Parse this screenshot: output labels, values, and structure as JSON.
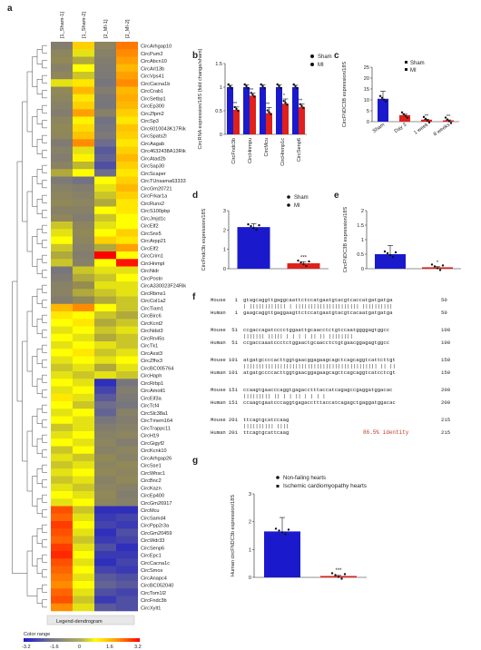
{
  "panels": {
    "a": "a",
    "b": "b",
    "c": "c",
    "d": "d",
    "e": "e",
    "f": "f",
    "g": "g"
  },
  "chart_data": [
    {
      "panel": "a",
      "type": "heatmap",
      "columns": [
        "[1_Sham-1]",
        "[1_Sham-2]",
        "[2_MI-1]",
        "[2_MI-2]"
      ],
      "rows": [
        "CircArhgap10",
        "CircPum2",
        "CircAbcn10",
        "CircArl13b",
        "CircVps41",
        "CircCacna1b",
        "CircCrab1",
        "CircSetbp1",
        "CircEp300",
        "CircZfpm2",
        "CircSp3",
        "Circ6010043K17Rik",
        "CircSpats2l",
        "CircAagab",
        "Circ4632438A13Rik",
        "CircAtad2b",
        "CircSap30",
        "CircScaper",
        "CircTUnsama63333",
        "CircGm20721",
        "CircFrkar1a",
        "CircRunx2",
        "CircS100pbp",
        "CircJmjd1c",
        "CircElf2",
        "CircSnx5",
        "CircArpp21",
        "CircElf2",
        "CircCrim1",
        "CircHnmpl",
        "CircNidr",
        "CircPostn",
        "CircA330023F24Rik",
        "CircRbms1",
        "CircCol1a2",
        "CircTiam1",
        "CircBirc6",
        "CircKcnt2",
        "CircNdst3",
        "CircRn45s",
        "CircTk1",
        "CircAxst3",
        "CircZfhx3",
        "CircBC005764",
        "CircHaph",
        "CircRrbp1",
        "CircAmotl1",
        "CircEif3a",
        "CircTcf4",
        "CircSlc38a1",
        "CircTmem164",
        "CircTrappc11",
        "CircH19",
        "CircGigyf2",
        "CircKcnk10",
        "CircArhgap26",
        "CircSse1",
        "CircWhsc1",
        "CircBnc2",
        "CircKazn",
        "CircEp400",
        "CircGm26917",
        "CircMcu",
        "CircSamd4",
        "CircPpp2r3a",
        "CircGm20459",
        "CircWdr33",
        "CircSenp6",
        "CircEpc1",
        "CircCacna1c",
        "CircSmox",
        "CircAnapc4",
        "CircBC052040",
        "CircTom1l2",
        "CircFndc3b",
        "CircXylt1"
      ],
      "values": [
        [
          -0.8,
          1.2,
          -0.4,
          2.0
        ],
        [
          -0.4,
          0.6,
          -0.6,
          1.8
        ],
        [
          -0.2,
          0.2,
          -0.8,
          1.6
        ],
        [
          -0.6,
          0.8,
          -0.9,
          1.4
        ],
        [
          -0.3,
          0.4,
          -1.0,
          1.6
        ],
        [
          0.6,
          1.0,
          -1.2,
          1.8
        ],
        [
          -0.2,
          1.4,
          -0.8,
          1.4
        ],
        [
          -0.4,
          1.0,
          -1.1,
          1.5
        ],
        [
          -0.6,
          1.2,
          -1.2,
          1.4
        ],
        [
          -0.8,
          1.6,
          -0.6,
          1.2
        ],
        [
          -0.4,
          0.9,
          -1.4,
          1.0
        ],
        [
          -0.2,
          1.1,
          -1.2,
          1.3
        ],
        [
          -0.3,
          1.3,
          -1.0,
          1.2
        ],
        [
          -0.9,
          1.8,
          -1.6,
          1.0
        ],
        [
          -0.6,
          0.6,
          -2.0,
          1.2
        ],
        [
          -0.8,
          0.9,
          -1.8,
          1.4
        ],
        [
          -0.5,
          0.3,
          -2.2,
          1.2
        ],
        [
          0.2,
          0.8,
          -1.6,
          1.0
        ],
        [
          -1.0,
          -1.4,
          0.8,
          1.2
        ],
        [
          -0.6,
          -0.8,
          0.6,
          1.4
        ],
        [
          -0.4,
          -0.6,
          0.4,
          1.2
        ],
        [
          -0.2,
          -0.4,
          0.2,
          1.0
        ],
        [
          -0.6,
          -0.6,
          0.8,
          1.0
        ],
        [
          -0.3,
          -0.8,
          0.4,
          0.8
        ],
        [
          0.4,
          -0.4,
          0.6,
          0.8
        ],
        [
          0.6,
          -0.2,
          0.8,
          1.2
        ],
        [
          0.8,
          -0.4,
          1.2,
          1.0
        ],
        [
          0.4,
          -0.6,
          0.2,
          1.6
        ],
        [
          0.2,
          -0.8,
          3.2,
          0.8
        ],
        [
          0.4,
          -0.6,
          0.8,
          3.0
        ],
        [
          -1.2,
          0.4,
          0.6,
          0.6
        ],
        [
          -0.9,
          0.2,
          0.4,
          0.8
        ],
        [
          -0.6,
          0.0,
          0.6,
          0.6
        ],
        [
          -0.5,
          0.2,
          0.4,
          0.6
        ],
        [
          -0.8,
          -0.2,
          0.2,
          0.4
        ],
        [
          1.4,
          1.8,
          0.8,
          0.4
        ],
        [
          1.0,
          0.8,
          0.4,
          0.2
        ],
        [
          0.8,
          1.0,
          0.2,
          0.4
        ],
        [
          0.6,
          0.8,
          0.4,
          0.6
        ],
        [
          0.8,
          0.6,
          0.2,
          0.4
        ],
        [
          0.6,
          0.8,
          0.6,
          0.4
        ],
        [
          0.8,
          1.0,
          0.4,
          0.6
        ],
        [
          0.6,
          0.8,
          0.6,
          0.8
        ],
        [
          0.4,
          0.6,
          0.2,
          0.6
        ],
        [
          0.6,
          0.4,
          0.6,
          0.4
        ],
        [
          0.8,
          0.6,
          -2.8,
          -1.2
        ],
        [
          0.6,
          0.8,
          -2.4,
          -0.8
        ],
        [
          1.0,
          0.6,
          -2.0,
          -1.0
        ],
        [
          0.8,
          0.4,
          -1.6,
          -1.2
        ],
        [
          0.6,
          0.8,
          -1.8,
          -0.6
        ],
        [
          0.8,
          0.6,
          -1.2,
          -0.8
        ],
        [
          0.4,
          0.6,
          -0.8,
          -0.6
        ],
        [
          0.6,
          0.8,
          -0.6,
          -0.4
        ],
        [
          0.8,
          0.6,
          -0.4,
          -0.8
        ],
        [
          0.4,
          0.8,
          -0.6,
          -0.4
        ],
        [
          0.6,
          0.4,
          -0.2,
          -0.6
        ],
        [
          0.4,
          0.6,
          -0.4,
          -0.2
        ],
        [
          0.6,
          0.8,
          -0.2,
          -0.4
        ],
        [
          0.4,
          0.6,
          -0.6,
          -0.2
        ],
        [
          0.6,
          0.4,
          -0.4,
          -0.6
        ],
        [
          0.8,
          0.6,
          -0.2,
          -0.8
        ],
        [
          0.6,
          0.8,
          -0.4,
          -0.6
        ],
        [
          2.4,
          0.4,
          -2.8,
          -2.8
        ],
        [
          2.2,
          0.6,
          -2.6,
          -2.4
        ],
        [
          2.6,
          0.8,
          -2.4,
          -2.6
        ],
        [
          2.4,
          0.6,
          -2.8,
          -2.2
        ],
        [
          2.2,
          0.4,
          -2.6,
          -2.4
        ],
        [
          2.6,
          0.6,
          -2.2,
          -2.8
        ],
        [
          2.8,
          0.8,
          -2.6,
          -2.6
        ],
        [
          2.4,
          0.6,
          -2.8,
          -2.4
        ],
        [
          2.2,
          0.8,
          -2.4,
          -2.6
        ],
        [
          2.0,
          0.6,
          -2.0,
          -2.2
        ],
        [
          1.8,
          0.8,
          -1.8,
          -2.0
        ],
        [
          2.2,
          0.6,
          -2.2,
          -2.4
        ],
        [
          2.4,
          0.4,
          -2.6,
          -2.2
        ],
        [
          1.8,
          0.6,
          -2.0,
          -2.2
        ]
      ],
      "legend_title": "Legend-dendrogram",
      "color_label": "Color range",
      "color_ticks": [
        -3.2,
        -1.6,
        0,
        1.6,
        3.2
      ],
      "colors": [
        "#1a1acc",
        "#8a8a5a",
        "#ffff00",
        "#ff0000"
      ]
    },
    {
      "panel": "b",
      "type": "bar",
      "categories": [
        "CircFndc3b",
        "CircHnmpu",
        "CircMcu",
        "CircHnmp1c",
        "CircSenp6"
      ],
      "series": [
        {
          "name": "Sham",
          "values": [
            1.0,
            1.0,
            1.0,
            1.0,
            1.0
          ],
          "err": [
            0.04,
            0.05,
            0.05,
            0.05,
            0.04
          ],
          "color": "#1a1acc"
        },
        {
          "name": "MI",
          "values": [
            0.52,
            0.82,
            0.45,
            0.65,
            0.58
          ],
          "err": [
            0.06,
            0.05,
            0.12,
            0.1,
            0.06
          ],
          "color": "#e0201a"
        }
      ],
      "significance": [
        "**",
        "**",
        "**",
        "*",
        "**"
      ],
      "ylabel": "CircRNA expression/18S (fold change/sham)",
      "ylim": [
        0,
        1.5
      ],
      "yticks": [
        0.0,
        0.5,
        1.0,
        1.5
      ]
    },
    {
      "panel": "c",
      "type": "bar",
      "categories": [
        "Sham",
        "Day 3",
        "1 week",
        "8 weeks"
      ],
      "values": [
        10.5,
        3.0,
        0.9,
        0.6
      ],
      "err": [
        3.5,
        0.4,
        0.2,
        0.2
      ],
      "colors": [
        "#1a1acc",
        "#e0201a",
        "#e0201a",
        "#e0201a"
      ],
      "significance": [
        "",
        "",
        "**",
        "**"
      ],
      "legend": [
        "Sham",
        "MI"
      ],
      "ylabel": "CircFNDC3B expression/18S",
      "ylim": [
        0,
        25
      ],
      "yticks": [
        0,
        5,
        10,
        15,
        20,
        25
      ]
    },
    {
      "panel": "d",
      "type": "bar",
      "categories": [
        "Sham",
        "MI"
      ],
      "values": [
        2.15,
        0.28
      ],
      "err": [
        0.18,
        0.08
      ],
      "colors": [
        "#1a1acc",
        "#e0201a"
      ],
      "significance": [
        "",
        "***"
      ],
      "legend": [
        "Sham",
        "MI"
      ],
      "ylabel": "CircFndc3b expression/18S",
      "ylim": [
        0,
        3
      ],
      "yticks": [
        0,
        1,
        2,
        3
      ]
    },
    {
      "panel": "e",
      "type": "bar",
      "categories": [
        "Sham",
        "MI"
      ],
      "values": [
        0.5,
        0.05
      ],
      "err": [
        0.3,
        0.02
      ],
      "colors": [
        "#1a1acc",
        "#e0201a"
      ],
      "significance": [
        "",
        "*"
      ],
      "ylabel": "CircFNDC3B expression/18S",
      "ylim": [
        0,
        2.0
      ],
      "yticks": [
        0.0,
        0.5,
        1.0,
        1.5,
        2.0
      ]
    },
    {
      "panel": "g",
      "type": "bar",
      "categories": [
        "Non-failing hearts",
        "Ischemic cardiomyopathy hearts"
      ],
      "values": [
        1.65,
        0.05
      ],
      "err": [
        0.5,
        0.02
      ],
      "colors": [
        "#1a1acc",
        "#e0201a"
      ],
      "significance": [
        "",
        "***"
      ],
      "legend": [
        "Non-failing hearts",
        "Ischemic cardiomyopathy hearts"
      ],
      "ylabel": "Human circFNDC3b expression/18S",
      "ylim": [
        0,
        3
      ],
      "yticks": [
        0,
        1,
        2,
        3
      ]
    }
  ],
  "alignment": {
    "rows": [
      {
        "label": "Mouse",
        "start": "1",
        "seq": "gtagcaggttgaggcaattctccatgaatgtacgtcaccatgatgatga",
        "end": "50"
      },
      {
        "label": "Human",
        "start": "1",
        "seq": "gaagcaggttgaggaagttctccatgaatgtacgtcacaatgatgatga",
        "end": "50"
      },
      {
        "label": "Mouse",
        "start": "51",
        "seq": "ccgaccagatcccctggaattgcaacctctgtccaatggggagtggcc",
        "end": "100"
      },
      {
        "label": "Human",
        "start": "51",
        "seq": "ccgaccaaatccctctggaactgcaacctctgtgaacggagagtggcc",
        "end": "100"
      },
      {
        "label": "Mouse",
        "start": "101",
        "seq": "atgatgccccacttggtgaacggagaagcagctcagcaggtcattcttgt",
        "end": "150"
      },
      {
        "label": "Human",
        "start": "101",
        "seq": "atgatgccccacttggtgaacggagaagcagctcagcaggtcatcctcgt",
        "end": "150"
      },
      {
        "label": "Mouse",
        "start": "151",
        "seq": "ccaagtgaacccaggtgagacctttaccatcagagccgaggatggacac",
        "end": "200"
      },
      {
        "label": "Human",
        "start": "151",
        "seq": "ccaagtgaatcccaggtgagacctttaccatcagagctgaggatggacac",
        "end": "200"
      },
      {
        "label": "Mouse",
        "start": "201",
        "seq": "ttcagtgcatccaag",
        "end": "215"
      },
      {
        "label": "Human",
        "start": "201",
        "seq": "ttcagtgcattcaag",
        "end": "215"
      }
    ],
    "identity": "86.5% identity"
  }
}
